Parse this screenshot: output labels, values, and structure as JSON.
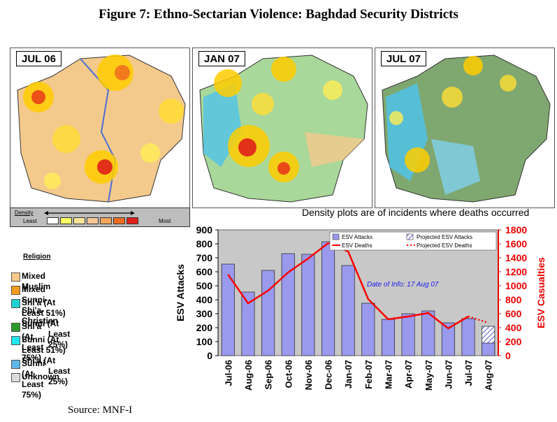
{
  "figure_title": "Figure 7: Ethno-Sectarian Violence: Baghdad Security Districts",
  "maps": [
    {
      "label": "JUL 06"
    },
    {
      "label": "JAN 07"
    },
    {
      "label": "JUL 07"
    }
  ],
  "density_legend": {
    "title": "Density",
    "least": "Least",
    "most": "Most",
    "colors": [
      "#ffffff",
      "#ffff66",
      "#fde59a",
      "#f7c79a",
      "#f5a55c",
      "#ee6b1f",
      "#e0201a"
    ]
  },
  "density_note": "Density plots are of incidents where deaths occurred",
  "religion_legend": {
    "title": "Religion",
    "items": [
      {
        "label_lines": [
          "Mixed Muslim"
        ],
        "color": "#f9c987"
      },
      {
        "label_lines": [
          "Mixed Sunni-Shi'a-Christian"
        ],
        "color": "#f39a1e"
      },
      {
        "label_lines": [
          "Shi'a (At Least 51%) Sunni (At",
          "Least 25%)"
        ],
        "color": "#1fd3d3"
      },
      {
        "label_lines": [
          "Shi'a (At Least 75%)"
        ],
        "color": "#2a9a2a"
      },
      {
        "label_lines": [
          "Sunni (At Least 51%) Shi'a (At",
          "Least 25%)"
        ],
        "color": "#22e5ef"
      },
      {
        "label_lines": [
          "Sunni (At Least 75%)"
        ],
        "color": "#5fb7e8"
      },
      {
        "label_lines": [
          "Unknown"
        ],
        "color": "#dcdcdc"
      }
    ]
  },
  "source": "Source: MNF-I",
  "chart_data": {
    "type": "bar",
    "categories": [
      "Jul-06",
      "Aug-06",
      "Sep-06",
      "Oct-06",
      "Nov-06",
      "Dec-06",
      "Jan-07",
      "Feb-07",
      "Mar-07",
      "Apr-07",
      "May-07",
      "Jun-07",
      "Jul-07",
      "Aug-07"
    ],
    "series": [
      {
        "name": "ESV Attacks",
        "axis": "left",
        "kind": "bar",
        "color": "#9999ee",
        "values": [
          655,
          455,
          610,
          730,
          725,
          815,
          645,
          375,
          260,
          300,
          320,
          235,
          265,
          90
        ]
      },
      {
        "name": "Projected ESV Attacks",
        "axis": "left",
        "kind": "bar-hatched",
        "color": "#6666cc",
        "values": [
          null,
          null,
          null,
          null,
          null,
          null,
          null,
          null,
          null,
          null,
          null,
          null,
          null,
          210
        ]
      },
      {
        "name": "ESV Deaths",
        "axis": "right",
        "kind": "line",
        "color": "#ff0000",
        "values": [
          1160,
          750,
          930,
          1190,
          1390,
          1610,
          1490,
          810,
          520,
          560,
          610,
          390,
          560,
          null
        ]
      },
      {
        "name": "Projected ESV Deaths",
        "axis": "right",
        "kind": "line-dotted",
        "color": "#ff0000",
        "values": [
          null,
          null,
          null,
          null,
          null,
          null,
          null,
          null,
          null,
          null,
          null,
          null,
          560,
          470
        ]
      }
    ],
    "ylabel": "ESV Attacks",
    "ylim": [
      0,
      900
    ],
    "yticks": [
      0,
      100,
      200,
      300,
      400,
      500,
      600,
      700,
      800,
      900
    ],
    "y2label": "ESV Casualties",
    "y2lim": [
      0,
      1800
    ],
    "y2ticks": [
      0,
      200,
      400,
      600,
      800,
      1000,
      1200,
      1400,
      1600,
      1800
    ],
    "annotation": "Date of Info: 17 Aug 07",
    "plot_background": "#c8c8c8"
  }
}
